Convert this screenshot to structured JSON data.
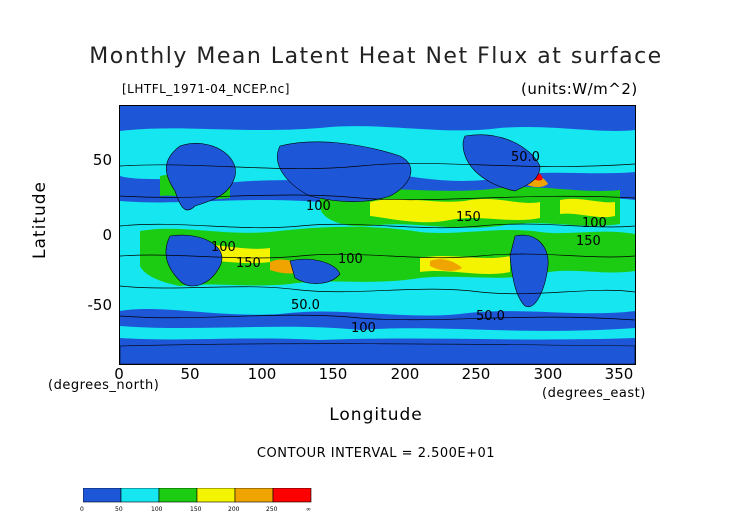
{
  "title": "Monthly Mean Latent Heat Net Flux at surface",
  "file_label": "[LHTFL_1971-04_NCEP.nc]",
  "units_label": "(units:W/m^2)",
  "x_axis": {
    "label": "Longitude",
    "units": "(degrees_east)",
    "ticks": [
      "0",
      "50",
      "100",
      "150",
      "200",
      "250",
      "300",
      "350"
    ]
  },
  "y_axis": {
    "label": "Latitude",
    "units": "(degrees_north)",
    "ticks": [
      "50",
      "0",
      "-50"
    ]
  },
  "contour_interval": "CONTOUR INTERVAL = 2.500E+01",
  "contour_labels": [
    "100",
    "150",
    "50.0",
    "100",
    "150",
    "100",
    "150",
    "100",
    "50.0",
    "50.0",
    "100"
  ],
  "colorbar": {
    "labels": [
      "0",
      "50",
      "100",
      "150",
      "200",
      "250",
      "∞"
    ],
    "colors": [
      "#1e56d8",
      "#16e6f0",
      "#1ccc12",
      "#f4f400",
      "#f0a400",
      "#ff0000"
    ]
  },
  "colors": {
    "low": "#1e56d8",
    "mid_low": "#16e6f0",
    "mid": "#1ccc12",
    "mid_high": "#f4f400",
    "high": "#f0a400",
    "max": "#ff0000"
  }
}
